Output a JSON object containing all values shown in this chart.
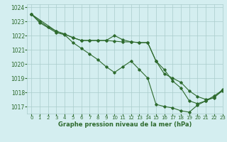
{
  "title": "Graphe pression niveau de la mer (hPa)",
  "bg_color": "#d4eef0",
  "grid_color": "#aacccc",
  "line_color": "#2d6a2d",
  "xlim": [
    -0.5,
    23
  ],
  "ylim": [
    1016.5,
    1024.2
  ],
  "xticks": [
    0,
    1,
    2,
    3,
    4,
    5,
    6,
    7,
    8,
    9,
    10,
    11,
    12,
    13,
    14,
    15,
    16,
    17,
    18,
    19,
    20,
    21,
    22,
    23
  ],
  "yticks": [
    1017,
    1018,
    1019,
    1020,
    1021,
    1022,
    1023,
    1024
  ],
  "series": [
    {
      "x": [
        0,
        1,
        2,
        3,
        4,
        5,
        6,
        7,
        8,
        9,
        10,
        11,
        12,
        13,
        14,
        15,
        16,
        17,
        18,
        19,
        20,
        21,
        22,
        23
      ],
      "y": [
        1023.5,
        1023.0,
        1022.6,
        1022.3,
        1022.1,
        1021.85,
        1021.65,
        1021.65,
        1021.65,
        1021.65,
        1021.6,
        1021.55,
        1021.55,
        1021.5,
        1021.5,
        1020.2,
        1019.3,
        1019.0,
        1018.7,
        1018.1,
        1017.7,
        1017.5,
        1017.6,
        1018.2
      ]
    },
    {
      "x": [
        0,
        3,
        4,
        5,
        6,
        7,
        8,
        9,
        10,
        11,
        12,
        13,
        14,
        15,
        16,
        17,
        18,
        19,
        20,
        21,
        22,
        23
      ],
      "y": [
        1023.5,
        1022.3,
        1022.1,
        1021.85,
        1021.65,
        1021.65,
        1021.65,
        1021.65,
        1022.0,
        1021.7,
        1021.55,
        1021.5,
        1021.5,
        1020.2,
        1019.6,
        1018.8,
        1018.3,
        1017.4,
        1017.2,
        1017.4,
        1017.65,
        1018.1
      ]
    },
    {
      "x": [
        0,
        1,
        3,
        4,
        5,
        6,
        7,
        8,
        9,
        10,
        11,
        12,
        13,
        14,
        15,
        16,
        17,
        18,
        19,
        20,
        21,
        22,
        23
      ],
      "y": [
        1023.5,
        1022.9,
        1022.2,
        1022.05,
        1021.5,
        1021.1,
        1020.7,
        1020.3,
        1019.8,
        1019.4,
        1019.8,
        1020.2,
        1019.6,
        1019.0,
        1017.15,
        1017.0,
        1016.9,
        1016.7,
        1016.6,
        1017.1,
        1017.4,
        1017.75,
        1018.15
      ]
    }
  ]
}
